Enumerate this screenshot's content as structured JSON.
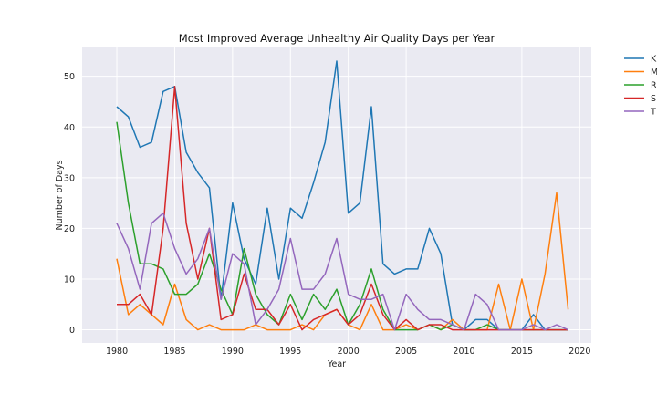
{
  "chart_data": {
    "type": "line",
    "title": "Most Improved Average Unhealthy Air Quality Days per Year",
    "xlabel": "Year",
    "ylabel": "Number of Days",
    "xlim": [
      1977.0,
      2021.0
    ],
    "ylim": [
      -2.6,
      55.7
    ],
    "xticks": [
      1980,
      1985,
      1990,
      1995,
      2000,
      2005,
      2010,
      2015,
      2020
    ],
    "yticks": [
      0,
      10,
      20,
      30,
      40,
      50
    ],
    "grid": true,
    "legend_position": "outside-right",
    "x": [
      1980,
      1981,
      1982,
      1983,
      1984,
      1985,
      1986,
      1987,
      1988,
      1989,
      1990,
      1991,
      1992,
      1993,
      1994,
      1995,
      1996,
      1997,
      1998,
      1999,
      2000,
      2001,
      2002,
      2003,
      2004,
      2005,
      2006,
      2007,
      2008,
      2009,
      2010,
      2011,
      2012,
      2013,
      2014,
      2015,
      2016,
      2017,
      2018,
      2019
    ],
    "series": [
      {
        "name": "K",
        "color": "#1f77b4",
        "values": [
          44,
          42,
          36,
          37,
          47,
          48,
          35,
          31,
          28,
          6,
          25,
          14,
          9,
          24,
          10,
          24,
          22,
          29,
          37,
          53,
          23,
          25,
          44,
          13,
          11,
          12,
          12,
          20,
          15,
          1,
          0,
          2,
          2,
          0,
          0,
          0,
          3,
          0,
          0,
          0
        ]
      },
      {
        "name": "M",
        "color": "#ff7f0e",
        "values": [
          14,
          3,
          5,
          3,
          1,
          9,
          2,
          0,
          1,
          0,
          0,
          0,
          1,
          0,
          0,
          0,
          1,
          0,
          3,
          4,
          1,
          0,
          5,
          0,
          0,
          1,
          0,
          1,
          0,
          2,
          0,
          0,
          0,
          9,
          0,
          10,
          0,
          11,
          27,
          4
        ]
      },
      {
        "name": "R",
        "color": "#2ca02c",
        "values": [
          41,
          25,
          13,
          13,
          12,
          7,
          7,
          9,
          15,
          8,
          3,
          16,
          7,
          3,
          1,
          7,
          2,
          7,
          4,
          8,
          1,
          5,
          12,
          4,
          0,
          0,
          0,
          1,
          0,
          1,
          0,
          0,
          1,
          0,
          0,
          0,
          0,
          0,
          0,
          0
        ]
      },
      {
        "name": "S",
        "color": "#d62728",
        "values": [
          5,
          5,
          7,
          3,
          20,
          48,
          21,
          10,
          20,
          2,
          3,
          11,
          4,
          4,
          1,
          5,
          0,
          2,
          3,
          4,
          1,
          3,
          9,
          3,
          0,
          2,
          0,
          1,
          1,
          0,
          0,
          0,
          0,
          0,
          0,
          0,
          0,
          0,
          0,
          0
        ]
      },
      {
        "name": "T",
        "color": "#9467bd",
        "values": [
          21,
          16,
          8,
          21,
          23,
          16,
          11,
          14,
          20,
          6,
          15,
          13,
          1,
          4,
          8,
          18,
          8,
          8,
          11,
          18,
          7,
          6,
          6,
          7,
          0,
          7,
          4,
          2,
          2,
          1,
          0,
          7,
          5,
          0,
          0,
          0,
          1,
          0,
          1,
          0
        ]
      }
    ]
  }
}
